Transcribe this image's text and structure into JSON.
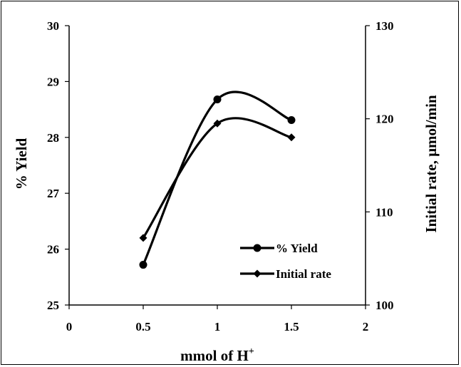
{
  "chart_data": {
    "type": "line",
    "xlabel": "mmol of H",
    "xlabel_sup": "+",
    "ylabel": "% Yield",
    "y2label": "Initial rate, μmol/min",
    "xlim": [
      0,
      2
    ],
    "ylim": [
      25,
      30
    ],
    "y2lim": [
      100,
      130
    ],
    "xticks": [
      "0",
      "0.5",
      "1",
      "1.5",
      "2"
    ],
    "yticks": [
      "25",
      "26",
      "27",
      "28",
      "29",
      "30"
    ],
    "y2ticks": [
      "100",
      "110",
      "120",
      "130"
    ],
    "grid": false,
    "legend_position": "bottom-right",
    "series": [
      {
        "name": "% Yield",
        "axis": "left",
        "marker": "circle",
        "smooth": true,
        "x": [
          0.5,
          1.0,
          1.5
        ],
        "values": [
          25.72,
          28.68,
          28.31
        ]
      },
      {
        "name": "Initial rate",
        "axis": "right",
        "marker": "diamond",
        "smooth": true,
        "x": [
          0.5,
          1.0,
          1.5
        ],
        "values": [
          107.2,
          119.5,
          118.0
        ]
      }
    ]
  }
}
